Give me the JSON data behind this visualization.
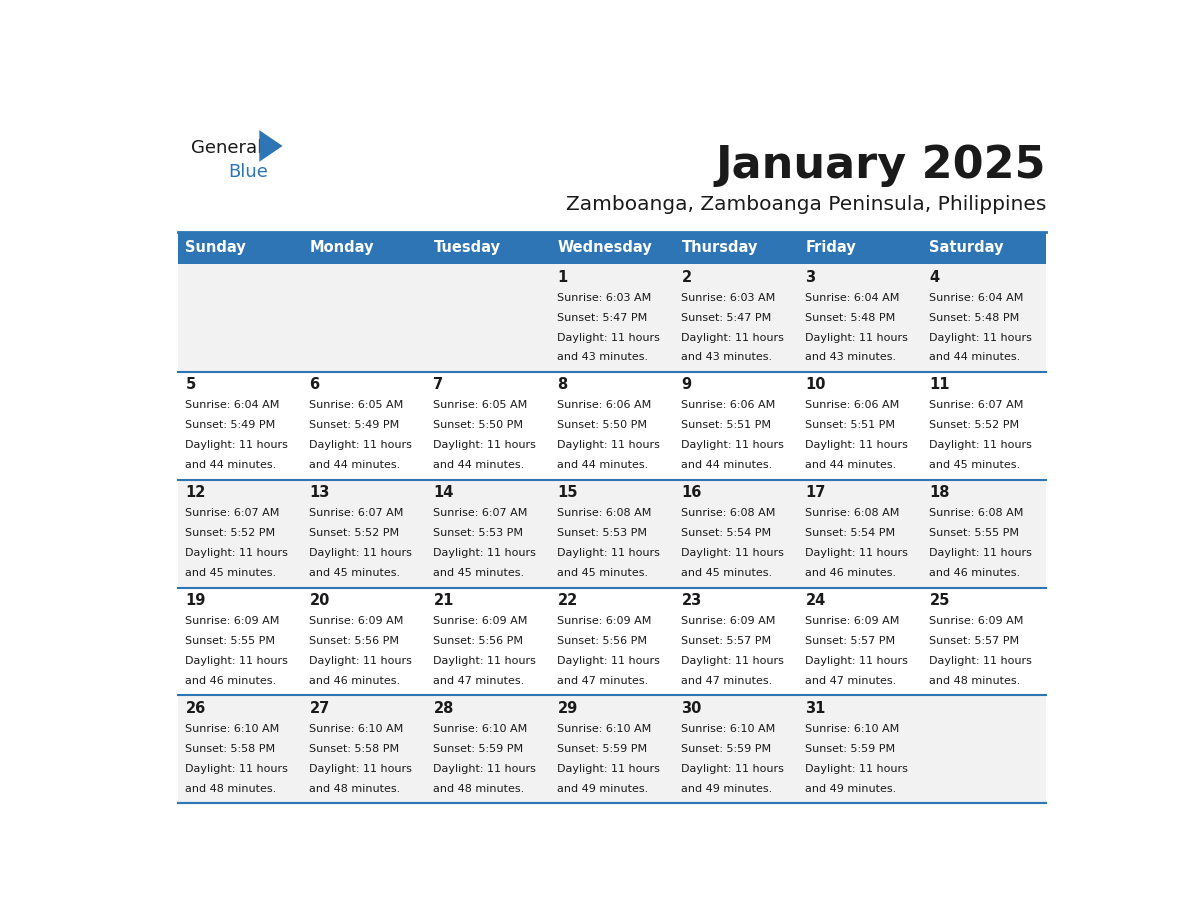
{
  "title": "January 2025",
  "subtitle": "Zamboanga, Zamboanga Peninsula, Philippines",
  "header_color": "#2E75B6",
  "header_text_color": "#FFFFFF",
  "cell_bg_even": "#F2F2F2",
  "cell_bg_odd": "#FFFFFF",
  "border_color": "#2E75B6",
  "text_color": "#333333",
  "days_of_week": [
    "Sunday",
    "Monday",
    "Tuesday",
    "Wednesday",
    "Thursday",
    "Friday",
    "Saturday"
  ],
  "calendar_data": [
    [
      {
        "day": "",
        "sunrise": "",
        "sunset": "",
        "daylight_h": "",
        "daylight_m": ""
      },
      {
        "day": "",
        "sunrise": "",
        "sunset": "",
        "daylight_h": "",
        "daylight_m": ""
      },
      {
        "day": "",
        "sunrise": "",
        "sunset": "",
        "daylight_h": "",
        "daylight_m": ""
      },
      {
        "day": "1",
        "sunrise": "6:03 AM",
        "sunset": "5:47 PM",
        "daylight_h": "11 hours",
        "daylight_m": "and 43 minutes."
      },
      {
        "day": "2",
        "sunrise": "6:03 AM",
        "sunset": "5:47 PM",
        "daylight_h": "11 hours",
        "daylight_m": "and 43 minutes."
      },
      {
        "day": "3",
        "sunrise": "6:04 AM",
        "sunset": "5:48 PM",
        "daylight_h": "11 hours",
        "daylight_m": "and 43 minutes."
      },
      {
        "day": "4",
        "sunrise": "6:04 AM",
        "sunset": "5:48 PM",
        "daylight_h": "11 hours",
        "daylight_m": "and 44 minutes."
      }
    ],
    [
      {
        "day": "5",
        "sunrise": "6:04 AM",
        "sunset": "5:49 PM",
        "daylight_h": "11 hours",
        "daylight_m": "and 44 minutes."
      },
      {
        "day": "6",
        "sunrise": "6:05 AM",
        "sunset": "5:49 PM",
        "daylight_h": "11 hours",
        "daylight_m": "and 44 minutes."
      },
      {
        "day": "7",
        "sunrise": "6:05 AM",
        "sunset": "5:50 PM",
        "daylight_h": "11 hours",
        "daylight_m": "and 44 minutes."
      },
      {
        "day": "8",
        "sunrise": "6:06 AM",
        "sunset": "5:50 PM",
        "daylight_h": "11 hours",
        "daylight_m": "and 44 minutes."
      },
      {
        "day": "9",
        "sunrise": "6:06 AM",
        "sunset": "5:51 PM",
        "daylight_h": "11 hours",
        "daylight_m": "and 44 minutes."
      },
      {
        "day": "10",
        "sunrise": "6:06 AM",
        "sunset": "5:51 PM",
        "daylight_h": "11 hours",
        "daylight_m": "and 44 minutes."
      },
      {
        "day": "11",
        "sunrise": "6:07 AM",
        "sunset": "5:52 PM",
        "daylight_h": "11 hours",
        "daylight_m": "and 45 minutes."
      }
    ],
    [
      {
        "day": "12",
        "sunrise": "6:07 AM",
        "sunset": "5:52 PM",
        "daylight_h": "11 hours",
        "daylight_m": "and 45 minutes."
      },
      {
        "day": "13",
        "sunrise": "6:07 AM",
        "sunset": "5:52 PM",
        "daylight_h": "11 hours",
        "daylight_m": "and 45 minutes."
      },
      {
        "day": "14",
        "sunrise": "6:07 AM",
        "sunset": "5:53 PM",
        "daylight_h": "11 hours",
        "daylight_m": "and 45 minutes."
      },
      {
        "day": "15",
        "sunrise": "6:08 AM",
        "sunset": "5:53 PM",
        "daylight_h": "11 hours",
        "daylight_m": "and 45 minutes."
      },
      {
        "day": "16",
        "sunrise": "6:08 AM",
        "sunset": "5:54 PM",
        "daylight_h": "11 hours",
        "daylight_m": "and 45 minutes."
      },
      {
        "day": "17",
        "sunrise": "6:08 AM",
        "sunset": "5:54 PM",
        "daylight_h": "11 hours",
        "daylight_m": "and 46 minutes."
      },
      {
        "day": "18",
        "sunrise": "6:08 AM",
        "sunset": "5:55 PM",
        "daylight_h": "11 hours",
        "daylight_m": "and 46 minutes."
      }
    ],
    [
      {
        "day": "19",
        "sunrise": "6:09 AM",
        "sunset": "5:55 PM",
        "daylight_h": "11 hours",
        "daylight_m": "and 46 minutes."
      },
      {
        "day": "20",
        "sunrise": "6:09 AM",
        "sunset": "5:56 PM",
        "daylight_h": "11 hours",
        "daylight_m": "and 46 minutes."
      },
      {
        "day": "21",
        "sunrise": "6:09 AM",
        "sunset": "5:56 PM",
        "daylight_h": "11 hours",
        "daylight_m": "and 47 minutes."
      },
      {
        "day": "22",
        "sunrise": "6:09 AM",
        "sunset": "5:56 PM",
        "daylight_h": "11 hours",
        "daylight_m": "and 47 minutes."
      },
      {
        "day": "23",
        "sunrise": "6:09 AM",
        "sunset": "5:57 PM",
        "daylight_h": "11 hours",
        "daylight_m": "and 47 minutes."
      },
      {
        "day": "24",
        "sunrise": "6:09 AM",
        "sunset": "5:57 PM",
        "daylight_h": "11 hours",
        "daylight_m": "and 47 minutes."
      },
      {
        "day": "25",
        "sunrise": "6:09 AM",
        "sunset": "5:57 PM",
        "daylight_h": "11 hours",
        "daylight_m": "and 48 minutes."
      }
    ],
    [
      {
        "day": "26",
        "sunrise": "6:10 AM",
        "sunset": "5:58 PM",
        "daylight_h": "11 hours",
        "daylight_m": "and 48 minutes."
      },
      {
        "day": "27",
        "sunrise": "6:10 AM",
        "sunset": "5:58 PM",
        "daylight_h": "11 hours",
        "daylight_m": "and 48 minutes."
      },
      {
        "day": "28",
        "sunrise": "6:10 AM",
        "sunset": "5:59 PM",
        "daylight_h": "11 hours",
        "daylight_m": "and 48 minutes."
      },
      {
        "day": "29",
        "sunrise": "6:10 AM",
        "sunset": "5:59 PM",
        "daylight_h": "11 hours",
        "daylight_m": "and 49 minutes."
      },
      {
        "day": "30",
        "sunrise": "6:10 AM",
        "sunset": "5:59 PM",
        "daylight_h": "11 hours",
        "daylight_m": "and 49 minutes."
      },
      {
        "day": "31",
        "sunrise": "6:10 AM",
        "sunset": "5:59 PM",
        "daylight_h": "11 hours",
        "daylight_m": "and 49 minutes."
      },
      {
        "day": "",
        "sunrise": "",
        "sunset": "",
        "daylight_h": "",
        "daylight_m": ""
      }
    ]
  ]
}
